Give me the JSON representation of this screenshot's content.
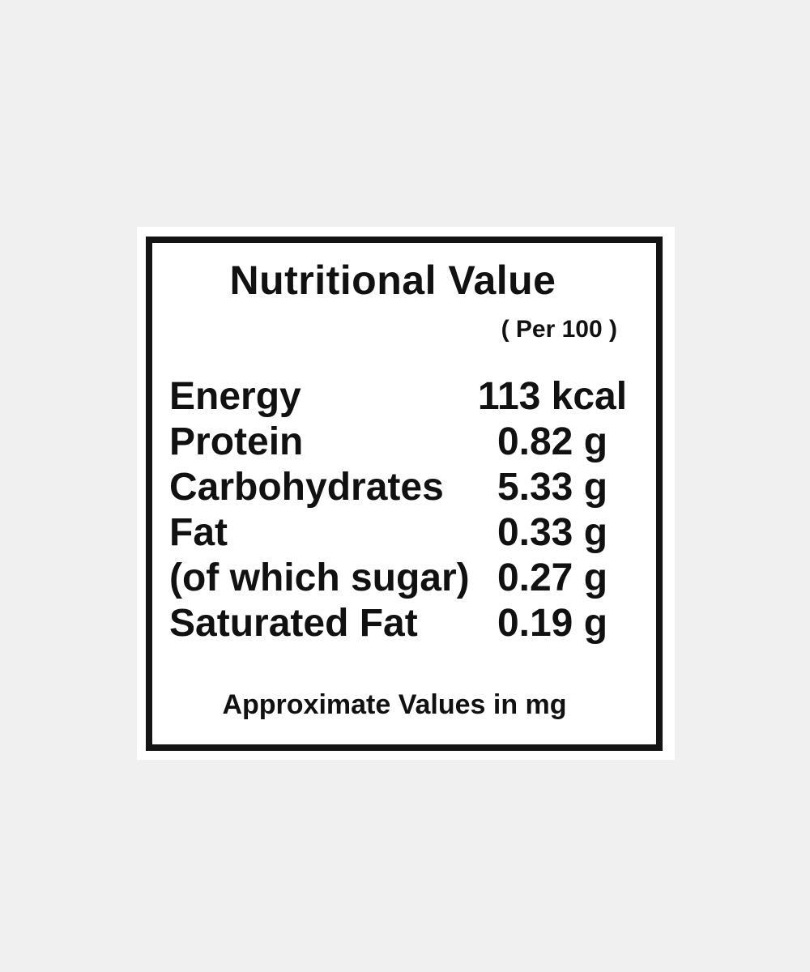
{
  "page": {
    "background_color": "#f0f0f0",
    "card_color": "#ffffff",
    "border_color": "#141414",
    "text_color": "#111111"
  },
  "label": {
    "title": "Nutritional Value",
    "serving_note": "( Per 100 )",
    "rows": [
      {
        "name": "Energy",
        "value": "113 kcal"
      },
      {
        "name": "Protein",
        "value": "0.82 g"
      },
      {
        "name": "Carbohydrates",
        "value": "5.33 g"
      },
      {
        "name": "Fat",
        "value": "0.33 g"
      },
      {
        "name": "(of which sugar)",
        "value": "0.27 g"
      },
      {
        "name": "Saturated Fat",
        "value": "0.19 g"
      }
    ],
    "footer": "Approximate Values in mg"
  }
}
